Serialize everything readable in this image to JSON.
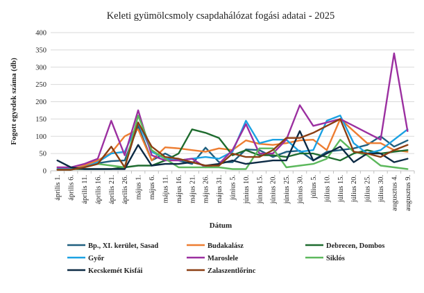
{
  "chart_data": {
    "type": "line",
    "title": "Keleti gyümölcsmoly csapdahálózat fogási adatai - 2025",
    "xlabel": "Dátum",
    "ylabel": "Fogott egyedek száma (db)",
    "ylim": [
      0,
      400
    ],
    "yticks": [
      0,
      50,
      100,
      150,
      200,
      250,
      300,
      350,
      400
    ],
    "grid": true,
    "legend_position": "bottom",
    "x": [
      "április 1.",
      "április 6.",
      "április 11.",
      "április 16.",
      "április 21.",
      "április 26.",
      "május 1.",
      "május 6.",
      "május 11.",
      "május 16.",
      "május 21.",
      "május 26.",
      "május 31.",
      "június 5.",
      "június 10.",
      "június 15.",
      "június 20.",
      "június 25.",
      "június 30.",
      "július 5.",
      "július 10.",
      "július 15.",
      "július 20.",
      "július 25.",
      "július 30.",
      "augusztus 4.",
      "augusztus 9."
    ],
    "series": [
      {
        "name": "Bp., XI. kerület, Sasad",
        "color": "#1f5f7f",
        "values": [
          5,
          3,
          12,
          22,
          28,
          30,
          130,
          30,
          50,
          30,
          20,
          67,
          25,
          25,
          62,
          60,
          40,
          55,
          58,
          30,
          55,
          60,
          65,
          75,
          100,
          70,
          88
        ]
      },
      {
        "name": "Budakalász",
        "color": "#ed7d31",
        "values": [
          3,
          5,
          15,
          30,
          52,
          100,
          120,
          30,
          68,
          65,
          60,
          55,
          65,
          60,
          88,
          78,
          75,
          80,
          88,
          90,
          60,
          150,
          115,
          80,
          80,
          60,
          55
        ]
      },
      {
        "name": "Debrecen, Dombos",
        "color": "#1e6b2e",
        "values": [
          5,
          5,
          5,
          5,
          5,
          10,
          15,
          15,
          30,
          50,
          120,
          110,
          95,
          45,
          60,
          45,
          45,
          40,
          50,
          50,
          40,
          30,
          50,
          60,
          50,
          55,
          60
        ]
      },
      {
        "name": "Győr",
        "color": "#1ba1e2",
        "values": [
          5,
          5,
          10,
          25,
          50,
          55,
          140,
          55,
          35,
          30,
          35,
          40,
          35,
          55,
          145,
          80,
          90,
          90,
          55,
          60,
          145,
          160,
          80,
          50,
          60,
          90,
          120
        ]
      },
      {
        "name": "Maroslele",
        "color": "#9b2fa0",
        "values": [
          10,
          10,
          20,
          35,
          145,
          45,
          175,
          45,
          30,
          30,
          35,
          10,
          20,
          60,
          135,
          50,
          50,
          90,
          190,
          130,
          140,
          150,
          130,
          110,
          90,
          340,
          115
        ]
      },
      {
        "name": "Siklós",
        "color": "#5cb85c",
        "values": [
          3,
          3,
          10,
          20,
          15,
          10,
          160,
          60,
          35,
          10,
          10,
          10,
          10,
          5,
          5,
          65,
          65,
          10,
          15,
          20,
          35,
          90,
          55,
          45,
          15,
          10,
          5
        ]
      },
      {
        "name": "Kecskemét Kisfái",
        "color": "#0c2a44",
        "values": [
          30,
          10,
          5,
          5,
          5,
          5,
          75,
          15,
          20,
          20,
          25,
          15,
          20,
          30,
          20,
          25,
          30,
          30,
          115,
          30,
          50,
          70,
          25,
          50,
          50,
          25,
          35
        ]
      },
      {
        "name": "Zalaszentlőrinc",
        "color": "#8b3e12",
        "values": [
          3,
          3,
          10,
          20,
          70,
          10,
          140,
          70,
          40,
          35,
          25,
          15,
          15,
          50,
          40,
          40,
          60,
          95,
          95,
          110,
          130,
          150,
          55,
          50,
          40,
          60,
          75
        ]
      }
    ]
  }
}
